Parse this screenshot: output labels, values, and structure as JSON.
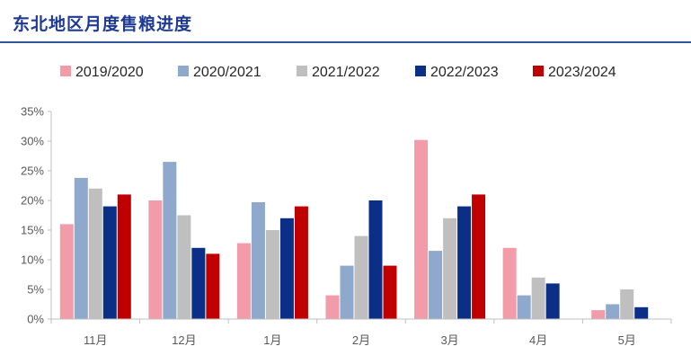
{
  "title": "东北地区月度售粮进度",
  "chart_data": {
    "type": "bar",
    "categories": [
      "11月",
      "12月",
      "1月",
      "2月",
      "3月",
      "4月",
      "5月"
    ],
    "series": [
      {
        "name": "2019/2020",
        "color": "#f19ca8",
        "values": [
          16,
          20,
          12.8,
          4,
          30.2,
          12,
          1.5
        ]
      },
      {
        "name": "2020/2021",
        "color": "#8ea9cc",
        "values": [
          23.8,
          26.5,
          19.7,
          9,
          11.5,
          4,
          2.5
        ]
      },
      {
        "name": "2021/2022",
        "color": "#bfbfbf",
        "values": [
          22,
          17.5,
          15,
          14,
          17,
          7,
          5
        ]
      },
      {
        "name": "2022/2023",
        "color": "#0b2f86",
        "values": [
          19,
          12,
          17,
          20,
          19,
          6,
          2
        ]
      },
      {
        "name": "2023/2024",
        "color": "#c00000",
        "values": [
          21,
          11,
          19,
          9,
          21,
          null,
          null
        ]
      }
    ],
    "ylim": [
      0,
      35
    ],
    "yticks": [
      "0%",
      "5%",
      "10%",
      "15%",
      "20%",
      "25%",
      "30%",
      "35%"
    ],
    "ytick_values": [
      0,
      5,
      10,
      15,
      20,
      25,
      30,
      35
    ],
    "xlabel": "",
    "ylabel": "",
    "legend_position": "top",
    "grid": false
  }
}
